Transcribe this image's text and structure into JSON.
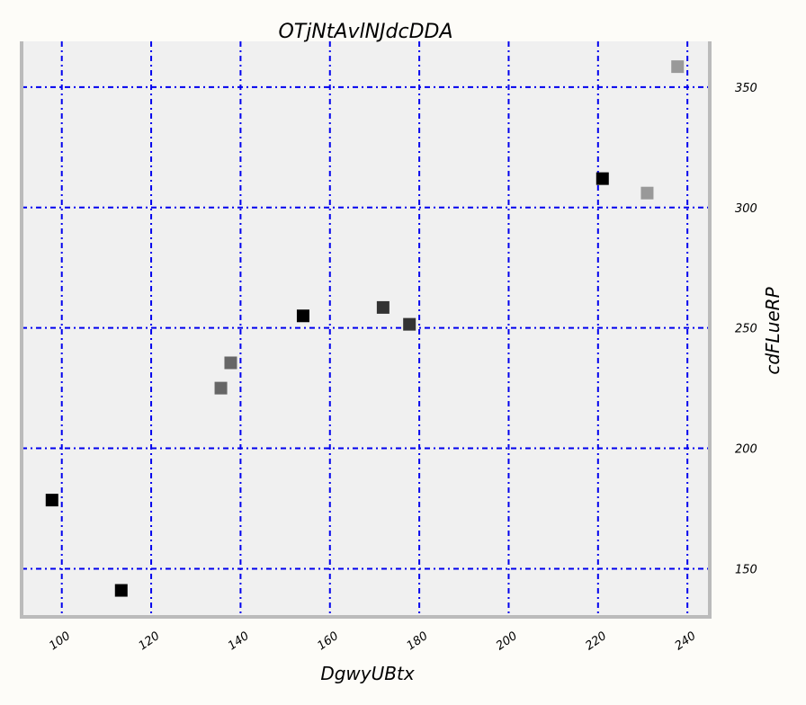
{
  "chart_data": {
    "type": "scatter",
    "title": "OTjNtAvlNJdcDDA",
    "xlabel": "DgwyUBtx",
    "ylabel": "cdFLueRP",
    "xlim": [
      91,
      245
    ],
    "ylim": [
      130,
      369
    ],
    "x_ticks": [
      100,
      120,
      140,
      160,
      180,
      200,
      220,
      240
    ],
    "y_ticks": [
      150,
      200,
      250,
      300,
      350
    ],
    "y_axis_position": "right",
    "grid": true,
    "grid_color": "#0000ee",
    "plot_background": "#f0f0f0",
    "frame_color": "#bbbbbb",
    "points": [
      {
        "x": 97.8,
        "y": 178.5,
        "color": "#000000"
      },
      {
        "x": 113.3,
        "y": 141.0,
        "color": "#000000"
      },
      {
        "x": 135.6,
        "y": 225.0,
        "color": "#666666"
      },
      {
        "x": 137.8,
        "y": 235.5,
        "color": "#666666"
      },
      {
        "x": 154.0,
        "y": 255.0,
        "color": "#000000"
      },
      {
        "x": 171.9,
        "y": 258.5,
        "color": "#333333"
      },
      {
        "x": 177.8,
        "y": 251.5,
        "color": "#333333"
      },
      {
        "x": 221.0,
        "y": 312.0,
        "color": "#000000"
      },
      {
        "x": 231.0,
        "y": 306.0,
        "color": "#999999"
      },
      {
        "x": 237.8,
        "y": 358.5,
        "color": "#999999"
      }
    ]
  }
}
